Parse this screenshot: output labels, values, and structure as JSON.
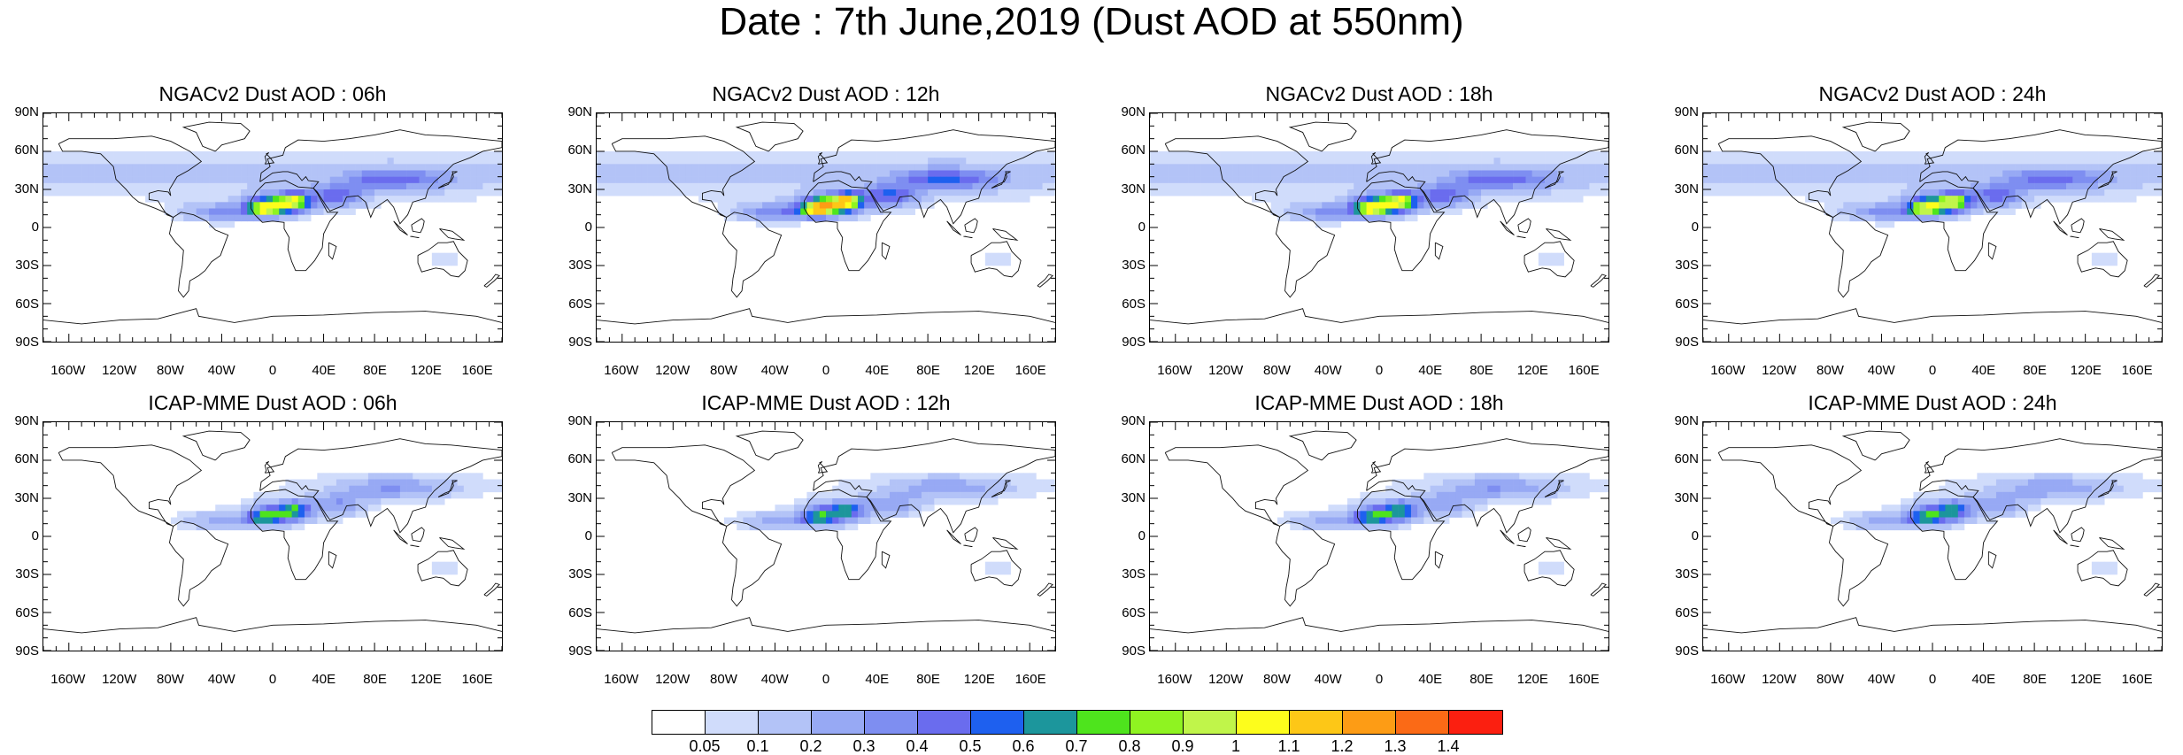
{
  "title": "Date : 7th June,2019 (Dust AOD at 550nm)",
  "lat_ticks": [
    "90N",
    "60N",
    "30N",
    "0",
    "30S",
    "60S",
    "90S"
  ],
  "lon_ticks": [
    "160W",
    "120W",
    "80W",
    "40W",
    "0",
    "40E",
    "80E",
    "120E",
    "160E"
  ],
  "lat_values": [
    90,
    60,
    30,
    0,
    -30,
    -60,
    -90
  ],
  "lon_values": [
    -160,
    -120,
    -80,
    -40,
    0,
    40,
    80,
    120,
    160
  ],
  "panels": [
    {
      "title": "NGACv2 Dust AOD : 06h",
      "model": "NGACv2",
      "hour": "06h",
      "intensity": 1.0
    },
    {
      "title": "NGACv2 Dust AOD : 12h",
      "model": "NGACv2",
      "hour": "12h",
      "intensity": 1.15
    },
    {
      "title": "NGACv2 Dust AOD : 18h",
      "model": "NGACv2",
      "hour": "18h",
      "intensity": 1.0
    },
    {
      "title": "NGACv2 Dust AOD : 24h",
      "model": "NGACv2",
      "hour": "24h",
      "intensity": 0.95
    },
    {
      "title": "ICAP-MME Dust AOD : 06h",
      "model": "ICAP-MME",
      "hour": "06h",
      "intensity": 0.7
    },
    {
      "title": "ICAP-MME Dust AOD : 12h",
      "model": "ICAP-MME",
      "hour": "12h",
      "intensity": 0.65
    },
    {
      "title": "ICAP-MME Dust AOD : 18h",
      "model": "ICAP-MME",
      "hour": "18h",
      "intensity": 0.68
    },
    {
      "title": "ICAP-MME Dust AOD : 24h",
      "model": "ICAP-MME",
      "hour": "24h",
      "intensity": 0.66
    }
  ],
  "colorbar": {
    "labels": [
      "0.05",
      "0.1",
      "0.2",
      "0.3",
      "0.4",
      "0.5",
      "0.6",
      "0.7",
      "0.8",
      "0.9",
      "1",
      "1.1",
      "1.2",
      "1.3",
      "1.4"
    ],
    "colors": [
      "#ffffff",
      "#d0dcfb",
      "#b3c3f7",
      "#97a9f4",
      "#7e8ef1",
      "#6a6cee",
      "#1e60ef",
      "#1c969c",
      "#4ee41d",
      "#8ff321",
      "#c0f54a",
      "#fdfd1c",
      "#fdc717",
      "#fd9c15",
      "#fb6a16",
      "#fb1f10"
    ]
  }
}
